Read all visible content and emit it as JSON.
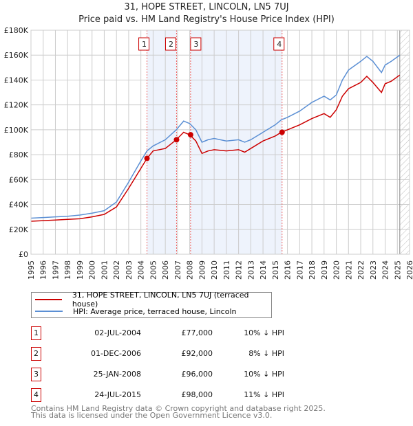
{
  "chart_data": {
    "type": "line",
    "title": "31, HOPE STREET, LINCOLN, LN5 7UJ",
    "subtitle": "Price paid vs. HM Land Registry's House Price Index (HPI)",
    "xlim": [
      1995,
      2026
    ],
    "ylim": [
      0,
      180000
    ],
    "x_ticks": [
      "1995",
      "1996",
      "1997",
      "1998",
      "1999",
      "2000",
      "2001",
      "2002",
      "2003",
      "2004",
      "2005",
      "2006",
      "2007",
      "2008",
      "2009",
      "2010",
      "2011",
      "2012",
      "2013",
      "2014",
      "2015",
      "2016",
      "2017",
      "2018",
      "2019",
      "2020",
      "2021",
      "2022",
      "2023",
      "2024",
      "2025",
      "2026"
    ],
    "y_ticks": [
      {
        "v": 0,
        "l": "£0"
      },
      {
        "v": 20000,
        "l": "£20K"
      },
      {
        "v": 40000,
        "l": "£40K"
      },
      {
        "v": 60000,
        "l": "£60K"
      },
      {
        "v": 80000,
        "l": "£80K"
      },
      {
        "v": 100000,
        "l": "£100K"
      },
      {
        "v": 120000,
        "l": "£120K"
      },
      {
        "v": 140000,
        "l": "£140K"
      },
      {
        "v": 160000,
        "l": "£160K"
      },
      {
        "v": 180000,
        "l": "£180K"
      }
    ],
    "grid": true,
    "x": [
      1995,
      1996,
      1997,
      1998,
      1999,
      2000,
      2001,
      2002,
      2003,
      2004,
      2004.5,
      2005,
      2006,
      2006.9,
      2007.5,
      2008,
      2008.5,
      2009,
      2009.5,
      2010,
      2011,
      2012,
      2012.5,
      2013,
      2014,
      2015,
      2015.5,
      2016,
      2017,
      2018,
      2019,
      2019.5,
      2020,
      2020.5,
      2021,
      2022,
      2022.5,
      2023,
      2023.7,
      2024,
      2024.5,
      2025.2
    ],
    "series": [
      {
        "name": "31, HOPE STREET, LINCOLN, LN5 7UJ (terraced house)",
        "color": "#cc0000",
        "values": [
          26500,
          27000,
          27500,
          28000,
          28500,
          30000,
          32000,
          38000,
          53000,
          69000,
          77000,
          83000,
          85000,
          92000,
          98000,
          96000,
          91000,
          81000,
          83000,
          84000,
          83000,
          84000,
          82000,
          85000,
          91000,
          95000,
          98000,
          100000,
          104000,
          109000,
          113000,
          110000,
          116000,
          127000,
          133000,
          138000,
          143000,
          138000,
          130000,
          137000,
          139000,
          144000
        ]
      },
      {
        "name": "HPI: Average price, terraced house, Lincoln",
        "color": "#5b8fd4",
        "values": [
          29000,
          29500,
          30000,
          30500,
          31500,
          33000,
          35000,
          42000,
          58000,
          75000,
          83000,
          87000,
          92000,
          100000,
          107000,
          105000,
          100000,
          90000,
          92000,
          93000,
          91000,
          92000,
          90000,
          92000,
          98000,
          104000,
          108000,
          110000,
          115000,
          122000,
          127000,
          124000,
          128000,
          140000,
          148000,
          155000,
          159000,
          155000,
          146000,
          152000,
          155000,
          160000
        ]
      }
    ],
    "sales": [
      {
        "n": "1",
        "x": 2004.5,
        "y": 77000
      },
      {
        "n": "2",
        "x": 2006.92,
        "y": 92000
      },
      {
        "n": "3",
        "x": 2008.07,
        "y": 96000
      },
      {
        "n": "4",
        "x": 2015.56,
        "y": 98000
      }
    ],
    "shaded": [
      [
        2004.5,
        2006.92
      ],
      [
        2008.07,
        2015.56
      ]
    ],
    "hatched_from": 2025.2
  },
  "legend": {
    "items": [
      "31, HOPE STREET, LINCOLN, LN5 7UJ (terraced house)",
      "HPI: Average price, terraced house, Lincoln"
    ]
  },
  "table": [
    {
      "n": "1",
      "date": "02-JUL-2004",
      "price": "£77,000",
      "pct": "10% ↓ HPI"
    },
    {
      "n": "2",
      "date": "01-DEC-2006",
      "price": "£92,000",
      "pct": "8% ↓ HPI"
    },
    {
      "n": "3",
      "date": "25-JAN-2008",
      "price": "£96,000",
      "pct": "10% ↓ HPI"
    },
    {
      "n": "4",
      "date": "24-JUL-2015",
      "price": "£98,000",
      "pct": "11% ↓ HPI"
    }
  ],
  "footer": [
    "Contains HM Land Registry data © Crown copyright and database right 2025.",
    "This data is licensed under the Open Government Licence v3.0."
  ]
}
